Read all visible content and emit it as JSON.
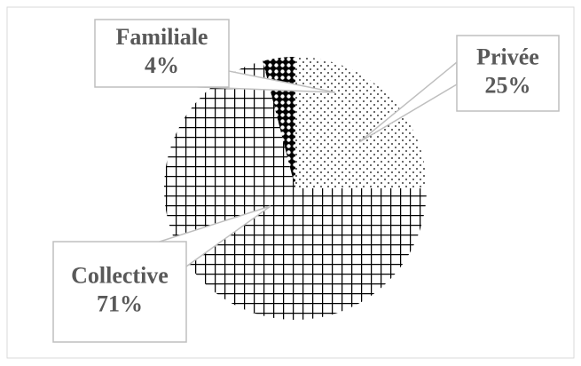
{
  "chart_data": {
    "type": "pie",
    "categories": [
      "Privée",
      "Collective",
      "Familiale"
    ],
    "values": [
      25,
      71,
      4
    ],
    "value_labels": [
      "25%",
      "71%",
      "4%"
    ]
  }
}
